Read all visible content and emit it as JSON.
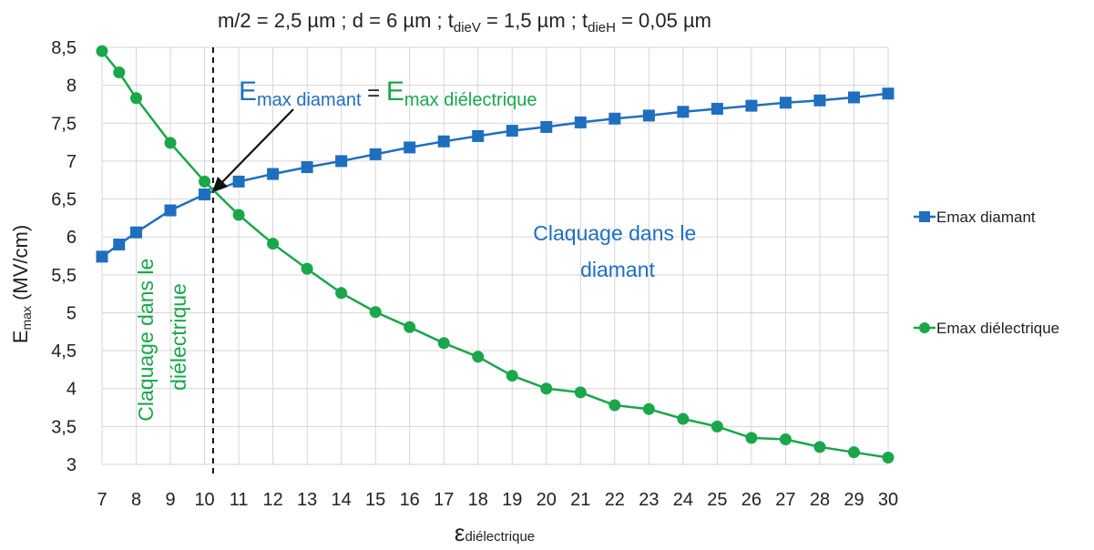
{
  "chart_data": {
    "type": "line",
    "title": {
      "parts": [
        {
          "t": "m/2 = 2,5 µm ; d = 6 µm ; t"
        },
        {
          "t": "dieV",
          "sub": true
        },
        {
          "t": " = 1,5 µm ; t"
        },
        {
          "t": "dieH",
          "sub": true
        },
        {
          "t": " = 0,05 µm"
        }
      ]
    },
    "xlabel": {
      "main": "ε",
      "sub": "diélectrique"
    },
    "ylabel": {
      "main": "E",
      "sub": "max",
      "rest": " (MV/cm)"
    },
    "x_ticks": [
      7,
      8,
      9,
      10,
      11,
      12,
      13,
      14,
      15,
      16,
      17,
      18,
      19,
      20,
      21,
      22,
      23,
      24,
      25,
      26,
      27,
      28,
      29,
      30
    ],
    "y_ticks": [
      "3",
      "3,5",
      "4",
      "4,5",
      "5",
      "5,5",
      "6",
      "6,5",
      "7",
      "7,5",
      "8",
      "8,5"
    ],
    "xlim": [
      7,
      30
    ],
    "ylim": [
      3,
      8.5
    ],
    "grid": true,
    "legend_position": "right",
    "series": [
      {
        "name": "Emax diamant",
        "color": "#1f6fbf",
        "marker": "square",
        "x": [
          7,
          7.5,
          8,
          9,
          10,
          11,
          12,
          13,
          14,
          15,
          16,
          17,
          18,
          19,
          20,
          21,
          22,
          23,
          24,
          25,
          26,
          27,
          28,
          29,
          30
        ],
        "y": [
          5.74,
          5.9,
          6.06,
          6.35,
          6.56,
          6.73,
          6.83,
          6.92,
          7.0,
          7.09,
          7.18,
          7.26,
          7.33,
          7.4,
          7.45,
          7.51,
          7.56,
          7.6,
          7.65,
          7.69,
          7.73,
          7.77,
          7.8,
          7.84,
          7.89
        ]
      },
      {
        "name": "Emax diélectrique",
        "color": "#1aa64b",
        "marker": "circle",
        "x": [
          7,
          7.5,
          8,
          9,
          10,
          11,
          12,
          13,
          14,
          15,
          16,
          17,
          18,
          19,
          20,
          21,
          22,
          23,
          24,
          25,
          26,
          27,
          28,
          29,
          30
        ],
        "y": [
          8.45,
          8.17,
          7.83,
          7.24,
          6.73,
          6.29,
          5.91,
          5.58,
          5.26,
          5.01,
          4.81,
          4.6,
          4.42,
          4.17,
          4.0,
          3.95,
          3.78,
          3.73,
          3.6,
          3.5,
          3.35,
          3.33,
          3.23,
          3.16,
          3.09
        ]
      }
    ],
    "vline": {
      "x": 10.25
    },
    "annotations": {
      "equality": {
        "left_main": "E",
        "left_sub": "max diamant",
        "eq": " = ",
        "right_main": "E",
        "right_sub": "max diélectrique"
      },
      "claquage_diamant": [
        "Claquage dans le",
        "diamant"
      ],
      "claquage_dielectrique": [
        "Claquage dans le",
        "diélectrique"
      ]
    }
  }
}
